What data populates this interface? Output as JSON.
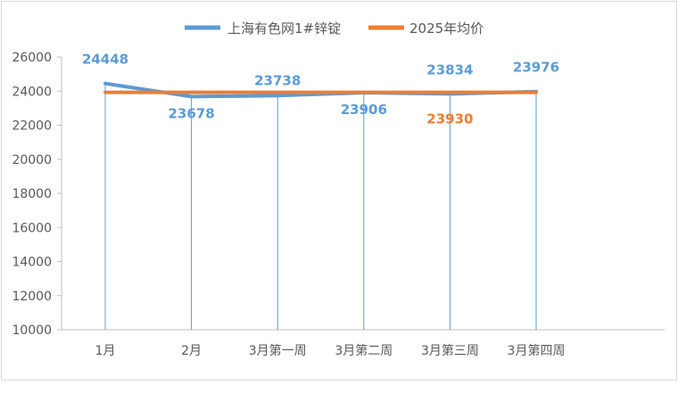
{
  "chart_data": {
    "type": "line",
    "categories": [
      "1月",
      "2月",
      "3月第一周",
      "3月第二周",
      "3月第三周",
      "3月第四周"
    ],
    "series": [
      {
        "name": "上海有色网1#锌锭",
        "values": [
          24448,
          23678,
          23738,
          23906,
          23834,
          23976
        ],
        "color": "#5b9bd5",
        "labels": [
          "24448",
          "23678",
          "23738",
          "23906",
          "23834",
          "23976"
        ]
      },
      {
        "name": "2025年均价",
        "values": [
          23930,
          23930,
          23930,
          23930,
          23930,
          23930
        ],
        "color": "#ed7d31",
        "labels": [
          "",
          "",
          "",
          "",
          "23930",
          ""
        ]
      }
    ],
    "ylim": [
      10000,
      26000
    ],
    "yticks": [
      "10000",
      "12000",
      "14000",
      "16000",
      "18000",
      "20000",
      "22000",
      "24000",
      "26000"
    ],
    "legend": "top",
    "drop_lines": true,
    "grid": false
  }
}
